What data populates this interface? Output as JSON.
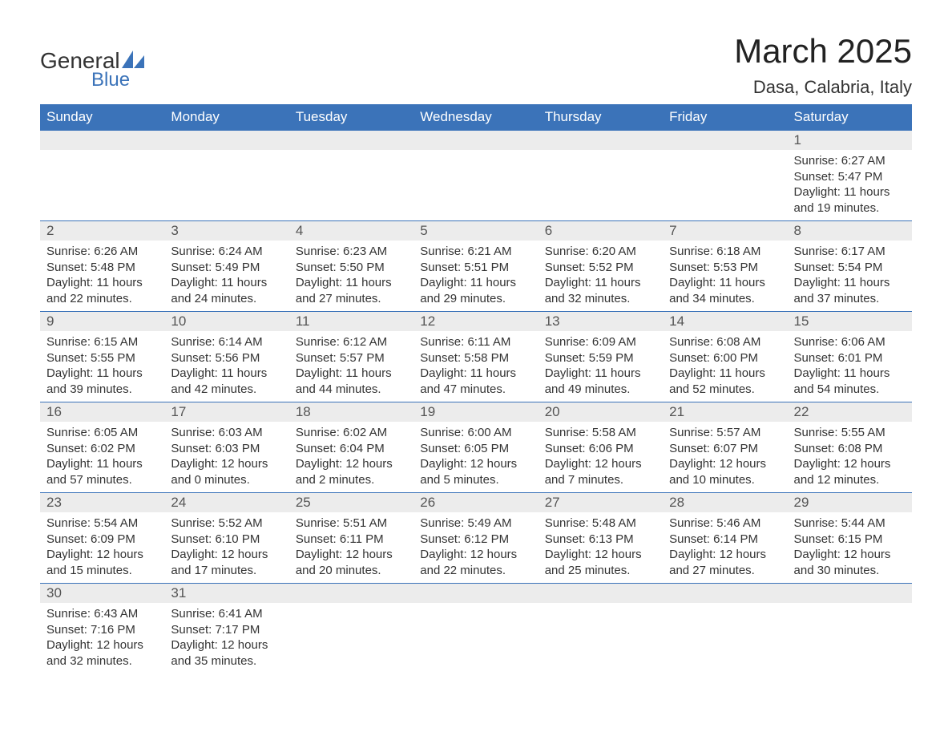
{
  "brand": {
    "general": "General",
    "blue": "Blue"
  },
  "title": {
    "month": "March 2025",
    "location": "Dasa, Calabria, Italy"
  },
  "colors": {
    "header_bg": "#3b73b9",
    "header_text": "#ffffff",
    "daynum_bg": "#ececec",
    "daynum_text": "#555555",
    "body_text": "#333333",
    "row_border": "#3b73b9",
    "page_bg": "#ffffff",
    "logo_icon": "#3b73b9"
  },
  "typography": {
    "month_title_fontsize": 42,
    "location_fontsize": 22,
    "dayheader_fontsize": 17,
    "daynum_fontsize": 17,
    "body_fontsize": 15,
    "logo_general_fontsize": 28,
    "logo_blue_fontsize": 24
  },
  "day_headers": [
    "Sunday",
    "Monday",
    "Tuesday",
    "Wednesday",
    "Thursday",
    "Friday",
    "Saturday"
  ],
  "calendar": {
    "type": "table",
    "columns": 7,
    "weeks": [
      [
        null,
        null,
        null,
        null,
        null,
        null,
        {
          "n": "1",
          "sunrise": "Sunrise: 6:27 AM",
          "sunset": "Sunset: 5:47 PM",
          "daylight": "Daylight: 11 hours and 19 minutes."
        }
      ],
      [
        {
          "n": "2",
          "sunrise": "Sunrise: 6:26 AM",
          "sunset": "Sunset: 5:48 PM",
          "daylight": "Daylight: 11 hours and 22 minutes."
        },
        {
          "n": "3",
          "sunrise": "Sunrise: 6:24 AM",
          "sunset": "Sunset: 5:49 PM",
          "daylight": "Daylight: 11 hours and 24 minutes."
        },
        {
          "n": "4",
          "sunrise": "Sunrise: 6:23 AM",
          "sunset": "Sunset: 5:50 PM",
          "daylight": "Daylight: 11 hours and 27 minutes."
        },
        {
          "n": "5",
          "sunrise": "Sunrise: 6:21 AM",
          "sunset": "Sunset: 5:51 PM",
          "daylight": "Daylight: 11 hours and 29 minutes."
        },
        {
          "n": "6",
          "sunrise": "Sunrise: 6:20 AM",
          "sunset": "Sunset: 5:52 PM",
          "daylight": "Daylight: 11 hours and 32 minutes."
        },
        {
          "n": "7",
          "sunrise": "Sunrise: 6:18 AM",
          "sunset": "Sunset: 5:53 PM",
          "daylight": "Daylight: 11 hours and 34 minutes."
        },
        {
          "n": "8",
          "sunrise": "Sunrise: 6:17 AM",
          "sunset": "Sunset: 5:54 PM",
          "daylight": "Daylight: 11 hours and 37 minutes."
        }
      ],
      [
        {
          "n": "9",
          "sunrise": "Sunrise: 6:15 AM",
          "sunset": "Sunset: 5:55 PM",
          "daylight": "Daylight: 11 hours and 39 minutes."
        },
        {
          "n": "10",
          "sunrise": "Sunrise: 6:14 AM",
          "sunset": "Sunset: 5:56 PM",
          "daylight": "Daylight: 11 hours and 42 minutes."
        },
        {
          "n": "11",
          "sunrise": "Sunrise: 6:12 AM",
          "sunset": "Sunset: 5:57 PM",
          "daylight": "Daylight: 11 hours and 44 minutes."
        },
        {
          "n": "12",
          "sunrise": "Sunrise: 6:11 AM",
          "sunset": "Sunset: 5:58 PM",
          "daylight": "Daylight: 11 hours and 47 minutes."
        },
        {
          "n": "13",
          "sunrise": "Sunrise: 6:09 AM",
          "sunset": "Sunset: 5:59 PM",
          "daylight": "Daylight: 11 hours and 49 minutes."
        },
        {
          "n": "14",
          "sunrise": "Sunrise: 6:08 AM",
          "sunset": "Sunset: 6:00 PM",
          "daylight": "Daylight: 11 hours and 52 minutes."
        },
        {
          "n": "15",
          "sunrise": "Sunrise: 6:06 AM",
          "sunset": "Sunset: 6:01 PM",
          "daylight": "Daylight: 11 hours and 54 minutes."
        }
      ],
      [
        {
          "n": "16",
          "sunrise": "Sunrise: 6:05 AM",
          "sunset": "Sunset: 6:02 PM",
          "daylight": "Daylight: 11 hours and 57 minutes."
        },
        {
          "n": "17",
          "sunrise": "Sunrise: 6:03 AM",
          "sunset": "Sunset: 6:03 PM",
          "daylight": "Daylight: 12 hours and 0 minutes."
        },
        {
          "n": "18",
          "sunrise": "Sunrise: 6:02 AM",
          "sunset": "Sunset: 6:04 PM",
          "daylight": "Daylight: 12 hours and 2 minutes."
        },
        {
          "n": "19",
          "sunrise": "Sunrise: 6:00 AM",
          "sunset": "Sunset: 6:05 PM",
          "daylight": "Daylight: 12 hours and 5 minutes."
        },
        {
          "n": "20",
          "sunrise": "Sunrise: 5:58 AM",
          "sunset": "Sunset: 6:06 PM",
          "daylight": "Daylight: 12 hours and 7 minutes."
        },
        {
          "n": "21",
          "sunrise": "Sunrise: 5:57 AM",
          "sunset": "Sunset: 6:07 PM",
          "daylight": "Daylight: 12 hours and 10 minutes."
        },
        {
          "n": "22",
          "sunrise": "Sunrise: 5:55 AM",
          "sunset": "Sunset: 6:08 PM",
          "daylight": "Daylight: 12 hours and 12 minutes."
        }
      ],
      [
        {
          "n": "23",
          "sunrise": "Sunrise: 5:54 AM",
          "sunset": "Sunset: 6:09 PM",
          "daylight": "Daylight: 12 hours and 15 minutes."
        },
        {
          "n": "24",
          "sunrise": "Sunrise: 5:52 AM",
          "sunset": "Sunset: 6:10 PM",
          "daylight": "Daylight: 12 hours and 17 minutes."
        },
        {
          "n": "25",
          "sunrise": "Sunrise: 5:51 AM",
          "sunset": "Sunset: 6:11 PM",
          "daylight": "Daylight: 12 hours and 20 minutes."
        },
        {
          "n": "26",
          "sunrise": "Sunrise: 5:49 AM",
          "sunset": "Sunset: 6:12 PM",
          "daylight": "Daylight: 12 hours and 22 minutes."
        },
        {
          "n": "27",
          "sunrise": "Sunrise: 5:48 AM",
          "sunset": "Sunset: 6:13 PM",
          "daylight": "Daylight: 12 hours and 25 minutes."
        },
        {
          "n": "28",
          "sunrise": "Sunrise: 5:46 AM",
          "sunset": "Sunset: 6:14 PM",
          "daylight": "Daylight: 12 hours and 27 minutes."
        },
        {
          "n": "29",
          "sunrise": "Sunrise: 5:44 AM",
          "sunset": "Sunset: 6:15 PM",
          "daylight": "Daylight: 12 hours and 30 minutes."
        }
      ],
      [
        {
          "n": "30",
          "sunrise": "Sunrise: 6:43 AM",
          "sunset": "Sunset: 7:16 PM",
          "daylight": "Daylight: 12 hours and 32 minutes."
        },
        {
          "n": "31",
          "sunrise": "Sunrise: 6:41 AM",
          "sunset": "Sunset: 7:17 PM",
          "daylight": "Daylight: 12 hours and 35 minutes."
        },
        null,
        null,
        null,
        null,
        null
      ]
    ]
  }
}
